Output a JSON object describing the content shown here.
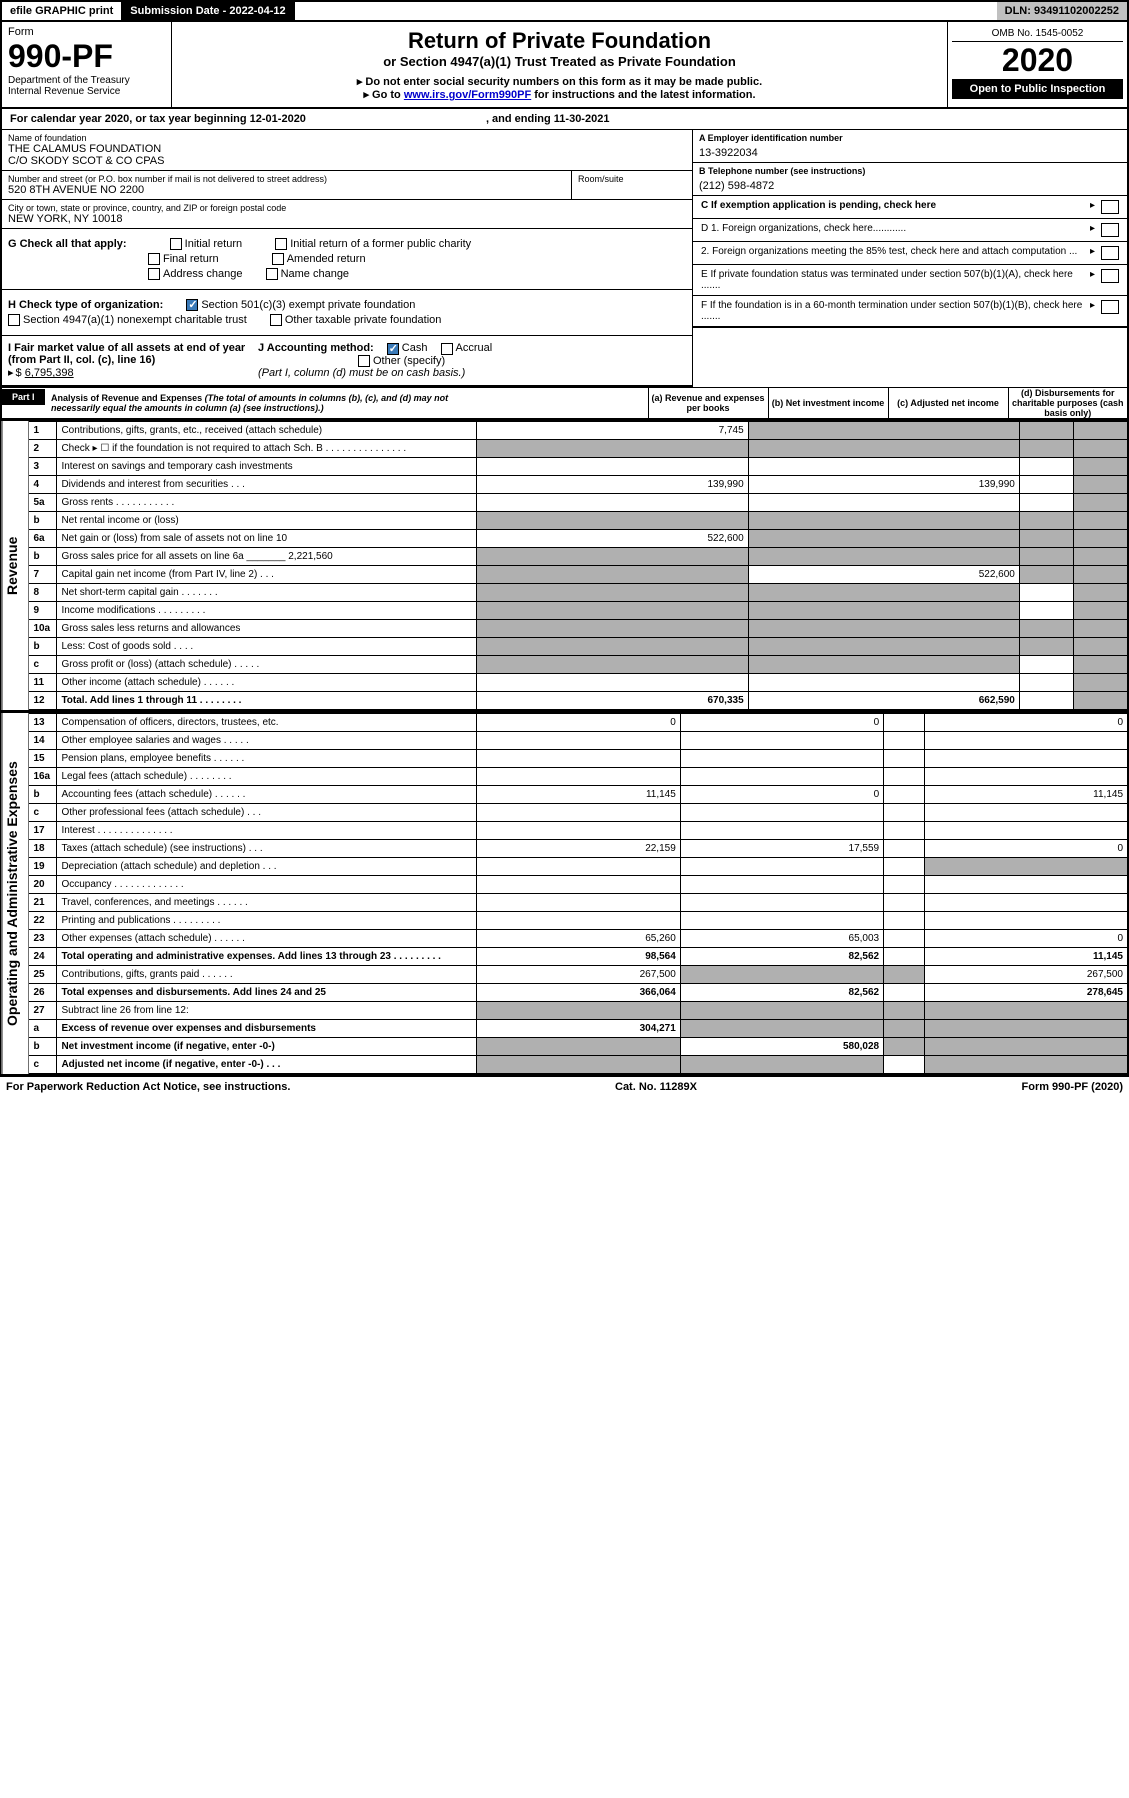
{
  "top": {
    "efile": "efile GRAPHIC print",
    "subdate_lbl": "Submission Date - ",
    "subdate": "2022-04-12",
    "dln_lbl": "DLN: ",
    "dln": "93491102002252"
  },
  "header": {
    "form": "Form",
    "formno": "990-PF",
    "dept": "Department of the Treasury",
    "irs": "Internal Revenue Service",
    "title": "Return of Private Foundation",
    "subtitle": "or Section 4947(a)(1) Trust Treated as Private Foundation",
    "instr1": "▸ Do not enter social security numbers on this form as it may be made public.",
    "instr2_pre": "▸ Go to ",
    "instr2_link": "www.irs.gov/Form990PF",
    "instr2_post": " for instructions and the latest information.",
    "omb": "OMB No. 1545-0052",
    "year": "2020",
    "open": "Open to Public Inspection"
  },
  "cal": {
    "pre": "For calendar year 2020, or tax year beginning ",
    "begin": "12-01-2020",
    "mid": ", and ending ",
    "end": "11-30-2021"
  },
  "info": {
    "name_lbl": "Name of foundation",
    "name1": "THE CALAMUS FOUNDATION",
    "name2": "C/O SKODY SCOT & CO CPAS",
    "addr_lbl": "Number and street (or P.O. box number if mail is not delivered to street address)",
    "addr": "520 8TH AVENUE NO 2200",
    "room_lbl": "Room/suite",
    "city_lbl": "City or town, state or province, country, and ZIP or foreign postal code",
    "city": "NEW YORK, NY  10018",
    "A_lbl": "A Employer identification number",
    "A_val": "13-3922034",
    "B_lbl": "B Telephone number (see instructions)",
    "B_val": "(212) 598-4872",
    "C_lbl": "C If exemption application is pending, check here",
    "D1": "D 1. Foreign organizations, check here............",
    "D2": "2. Foreign organizations meeting the 85% test, check here and attach computation ...",
    "E": "E  If private foundation status was terminated under section 507(b)(1)(A), check here .......",
    "F": "F  If the foundation is in a 60-month termination under section 507(b)(1)(B), check here .......",
    "G": "G Check all that apply:",
    "G_opts": [
      "Initial return",
      "Initial return of a former public charity",
      "Final return",
      "Amended return",
      "Address change",
      "Name change"
    ],
    "H": "H Check type of organization:",
    "H1": "Section 501(c)(3) exempt private foundation",
    "H2": "Section 4947(a)(1) nonexempt charitable trust",
    "H3": "Other taxable private foundation",
    "I": "I Fair market value of all assets at end of year (from Part II, col. (c), line 16)",
    "I_val": "6,795,398",
    "J": "J Accounting method:",
    "J_cash": "Cash",
    "J_acc": "Accrual",
    "J_other": "Other (specify)",
    "J_note": "(Part I, column (d) must be on cash basis.)"
  },
  "part1": {
    "label": "Part I",
    "title": "Analysis of Revenue and Expenses",
    "titlenote": "(The total of amounts in columns (b), (c), and (d) may not necessarily equal the amounts in column (a) (see instructions).)",
    "cols": {
      "a": "(a)  Revenue and expenses per books",
      "b": "(b)  Net investment income",
      "c": "(c)  Adjusted net income",
      "d": "(d)  Disbursements for charitable purposes (cash basis only)"
    },
    "side_rev": "Revenue",
    "side_exp": "Operating and Administrative Expenses"
  },
  "rows": [
    {
      "n": "1",
      "d": "Contributions, gifts, grants, etc., received (attach schedule)",
      "a": "7,745",
      "b": "",
      "c": "",
      "dd": "",
      "sb": true,
      "sc": true,
      "sd": true
    },
    {
      "n": "2",
      "d": "Check ▸ ☐ if the foundation is not required to attach Sch. B   .  .  .  .  .  .  .  .  .  .  .  .  .  .  .",
      "a": "",
      "b": "",
      "c": "",
      "dd": "",
      "sa": true,
      "sb": true,
      "sc": true,
      "sd": true
    },
    {
      "n": "3",
      "d": "Interest on savings and temporary cash investments",
      "a": "",
      "b": "",
      "c": "",
      "dd": "",
      "sd": true
    },
    {
      "n": "4",
      "d": "Dividends and interest from securities   .  .  .",
      "a": "139,990",
      "b": "139,990",
      "c": "",
      "dd": "",
      "sd": true
    },
    {
      "n": "5a",
      "d": "Gross rents   .  .  .  .  .  .  .  .  .  .  .",
      "a": "",
      "b": "",
      "c": "",
      "dd": "",
      "sd": true
    },
    {
      "n": "b",
      "d": "Net rental income or (loss)  ",
      "a": "",
      "b": "",
      "c": "",
      "dd": "",
      "sa": true,
      "sb": true,
      "sc": true,
      "sd": true
    },
    {
      "n": "6a",
      "d": "Net gain or (loss) from sale of assets not on line 10",
      "a": "522,600",
      "b": "",
      "c": "",
      "dd": "",
      "sb": true,
      "sc": true,
      "sd": true
    },
    {
      "n": "b",
      "d": "Gross sales price for all assets on line 6a _______ 2,221,560",
      "a": "",
      "b": "",
      "c": "",
      "dd": "",
      "sa": true,
      "sb": true,
      "sc": true,
      "sd": true
    },
    {
      "n": "7",
      "d": "Capital gain net income (from Part IV, line 2)   .  .  .",
      "a": "",
      "b": "522,600",
      "c": "",
      "dd": "",
      "sa": true,
      "sc": true,
      "sd": true
    },
    {
      "n": "8",
      "d": "Net short-term capital gain   .  .  .  .  .  .  .",
      "a": "",
      "b": "",
      "c": "",
      "dd": "",
      "sa": true,
      "sb": true,
      "sd": true
    },
    {
      "n": "9",
      "d": "Income modifications   .  .  .  .  .  .  .  .  .",
      "a": "",
      "b": "",
      "c": "",
      "dd": "",
      "sa": true,
      "sb": true,
      "sd": true
    },
    {
      "n": "10a",
      "d": "Gross sales less returns and allowances",
      "a": "",
      "b": "",
      "c": "",
      "dd": "",
      "sa": true,
      "sb": true,
      "sc": true,
      "sd": true
    },
    {
      "n": "b",
      "d": "Less: Cost of goods sold   .  .  .  .",
      "a": "",
      "b": "",
      "c": "",
      "dd": "",
      "sa": true,
      "sb": true,
      "sc": true,
      "sd": true
    },
    {
      "n": "c",
      "d": "Gross profit or (loss) (attach schedule)   .  .  .  .  .",
      "a": "",
      "b": "",
      "c": "",
      "dd": "",
      "sa": true,
      "sb": true,
      "sd": true
    },
    {
      "n": "11",
      "d": "Other income (attach schedule)   .  .  .  .  .  .",
      "a": "",
      "b": "",
      "c": "",
      "dd": "",
      "sd": true
    },
    {
      "n": "12",
      "d": "Total. Add lines 1 through 11   .  .  .  .  .  .  .  .",
      "a": "670,335",
      "b": "662,590",
      "c": "",
      "dd": "",
      "bold": true,
      "sd": true
    },
    {
      "n": "13",
      "d": "Compensation of officers, directors, trustees, etc.",
      "a": "0",
      "b": "0",
      "c": "",
      "dd": "0"
    },
    {
      "n": "14",
      "d": "Other employee salaries and wages   .  .  .  .  .",
      "a": "",
      "b": "",
      "c": "",
      "dd": ""
    },
    {
      "n": "15",
      "d": "Pension plans, employee benefits   .  .  .  .  .  .",
      "a": "",
      "b": "",
      "c": "",
      "dd": ""
    },
    {
      "n": "16a",
      "d": "Legal fees (attach schedule)  .  .  .  .  .  .  .  .",
      "a": "",
      "b": "",
      "c": "",
      "dd": ""
    },
    {
      "n": "b",
      "d": "Accounting fees (attach schedule)  .  .  .  .  .  .",
      "a": "11,145",
      "b": "0",
      "c": "",
      "dd": "11,145"
    },
    {
      "n": "c",
      "d": "Other professional fees (attach schedule)   .  .  .",
      "a": "",
      "b": "",
      "c": "",
      "dd": ""
    },
    {
      "n": "17",
      "d": "Interest  .  .  .  .  .  .  .  .  .  .  .  .  .  .",
      "a": "",
      "b": "",
      "c": "",
      "dd": ""
    },
    {
      "n": "18",
      "d": "Taxes (attach schedule) (see instructions)   .  .  .",
      "a": "22,159",
      "b": "17,559",
      "c": "",
      "dd": "0"
    },
    {
      "n": "19",
      "d": "Depreciation (attach schedule) and depletion   .  .  .",
      "a": "",
      "b": "",
      "c": "",
      "dd": "",
      "sd": true
    },
    {
      "n": "20",
      "d": "Occupancy  .  .  .  .  .  .  .  .  .  .  .  .  .",
      "a": "",
      "b": "",
      "c": "",
      "dd": ""
    },
    {
      "n": "21",
      "d": "Travel, conferences, and meetings  .  .  .  .  .  .",
      "a": "",
      "b": "",
      "c": "",
      "dd": ""
    },
    {
      "n": "22",
      "d": "Printing and publications  .  .  .  .  .  .  .  .  .",
      "a": "",
      "b": "",
      "c": "",
      "dd": ""
    },
    {
      "n": "23",
      "d": "Other expenses (attach schedule)  .  .  .  .  .  .",
      "a": "65,260",
      "b": "65,003",
      "c": "",
      "dd": "0"
    },
    {
      "n": "24",
      "d": "Total operating and administrative expenses. Add lines 13 through 23   .  .  .  .  .  .  .  .  .",
      "a": "98,564",
      "b": "82,562",
      "c": "",
      "dd": "11,145",
      "bold": true
    },
    {
      "n": "25",
      "d": "Contributions, gifts, grants paid   .  .  .  .  .  .",
      "a": "267,500",
      "b": "",
      "c": "",
      "dd": "267,500",
      "sb": true,
      "sc": true
    },
    {
      "n": "26",
      "d": "Total expenses and disbursements. Add lines 24 and 25",
      "a": "366,064",
      "b": "82,562",
      "c": "",
      "dd": "278,645",
      "bold": true
    },
    {
      "n": "27",
      "d": "Subtract line 26 from line 12:",
      "a": "",
      "b": "",
      "c": "",
      "dd": "",
      "sa": true,
      "sb": true,
      "sc": true,
      "sd": true
    },
    {
      "n": "a",
      "d": "Excess of revenue over expenses and disbursements",
      "a": "304,271",
      "b": "",
      "c": "",
      "dd": "",
      "bold": true,
      "sb": true,
      "sc": true,
      "sd": true
    },
    {
      "n": "b",
      "d": "Net investment income (if negative, enter -0-)",
      "a": "",
      "b": "580,028",
      "c": "",
      "dd": "",
      "bold": true,
      "sa": true,
      "sc": true,
      "sd": true
    },
    {
      "n": "c",
      "d": "Adjusted net income (if negative, enter -0-)   .  .  .",
      "a": "",
      "b": "",
      "c": "",
      "dd": "",
      "bold": true,
      "sa": true,
      "sb": true,
      "sd": true
    }
  ],
  "footer": {
    "left": "For Paperwork Reduction Act Notice, see instructions.",
    "mid": "Cat. No. 11289X",
    "right": "Form 990-PF (2020)"
  }
}
